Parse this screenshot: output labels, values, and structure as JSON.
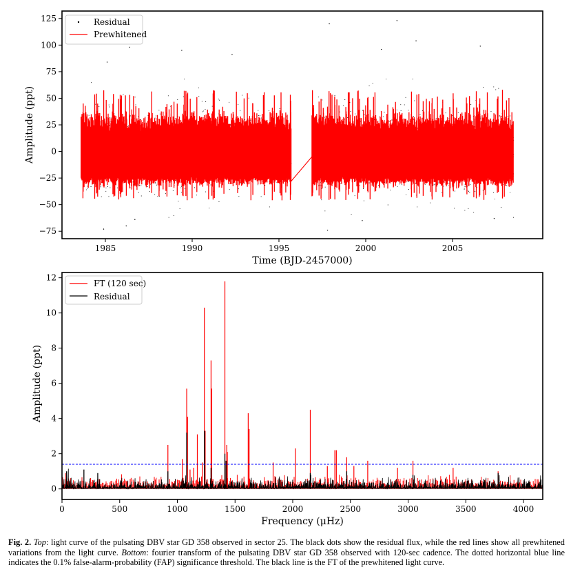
{
  "chart_data": [
    {
      "type": "scatter",
      "xlabel": "Time (BJD-2457000)",
      "ylabel": "Amplitude (ppt)",
      "xlim": [
        1982.5,
        2010.2
      ],
      "ylim": [
        -82,
        132
      ],
      "xticks": [
        1985,
        1990,
        1995,
        2000,
        2005
      ],
      "yticks": [
        -75,
        -50,
        -25,
        0,
        25,
        50,
        75,
        100,
        125
      ],
      "legend_position": "top-left",
      "grid": false,
      "segments": [
        [
          1983.6,
          1995.7
        ],
        [
          1996.9,
          2008.5
        ]
      ],
      "series": [
        {
          "name": "Residual",
          "style": "dots",
          "color": "#000000",
          "typical_range": [
            -45,
            45
          ],
          "outliers": [
            {
              "x": 1984.9,
              "y": -73
            },
            {
              "x": 1986.2,
              "y": -70
            },
            {
              "x": 1986.7,
              "y": -64
            },
            {
              "x": 1985.1,
              "y": 84
            },
            {
              "x": 1989.4,
              "y": 95
            },
            {
              "x": 1986.4,
              "y": 98
            },
            {
              "x": 1992.3,
              "y": 91
            },
            {
              "x": 1997.9,
              "y": 120
            },
            {
              "x": 1997.8,
              "y": -74
            },
            {
              "x": 2001.8,
              "y": 123
            },
            {
              "x": 2002.9,
              "y": 104
            },
            {
              "x": 2006.6,
              "y": 99
            },
            {
              "x": 2000.9,
              "y": 96
            },
            {
              "x": 1999.8,
              "y": -65
            },
            {
              "x": 2007.4,
              "y": -63
            }
          ]
        },
        {
          "name": "Prewhitened",
          "style": "line",
          "color": "#ff0000",
          "typical_range": [
            -30,
            35
          ],
          "gap_connector": [
            {
              "x": 1995.7,
              "y": -28
            },
            {
              "x": 1996.9,
              "y": -5
            }
          ]
        }
      ]
    },
    {
      "type": "line",
      "xlabel": "Frequency (μHz)",
      "ylabel": "Amplitude (ppt)",
      "xlim": [
        0,
        4167
      ],
      "ylim": [
        -0.6,
        12.3
      ],
      "xticks": [
        0,
        500,
        1000,
        1500,
        2000,
        2500,
        3000,
        3500,
        4000
      ],
      "yticks": [
        0,
        2,
        4,
        6,
        8,
        10,
        12
      ],
      "legend_position": "top-left",
      "grid": false,
      "fap_threshold": 1.4,
      "threshold_color": "#0000ff",
      "series": [
        {
          "name": "FT (120 sec)",
          "color": "#ff0000",
          "peaks": [
            {
              "x": 918,
              "y": 2.5
            },
            {
              "x": 1043,
              "y": 1.7
            },
            {
              "x": 1081,
              "y": 5.7
            },
            {
              "x": 1088,
              "y": 4.1
            },
            {
              "x": 1110,
              "y": 1.1
            },
            {
              "x": 1142,
              "y": 1.2
            },
            {
              "x": 1173,
              "y": 3.1
            },
            {
              "x": 1217,
              "y": 1.5
            },
            {
              "x": 1234,
              "y": 10.3
            },
            {
              "x": 1241,
              "y": 3.3
            },
            {
              "x": 1292,
              "y": 7.3
            },
            {
              "x": 1298,
              "y": 5.7
            },
            {
              "x": 1412,
              "y": 11.8
            },
            {
              "x": 1428,
              "y": 2.5
            },
            {
              "x": 1433,
              "y": 2.1
            },
            {
              "x": 1614,
              "y": 4.3
            },
            {
              "x": 1622,
              "y": 3.4
            },
            {
              "x": 1830,
              "y": 1.5
            },
            {
              "x": 2022,
              "y": 2.3
            },
            {
              "x": 2152,
              "y": 4.5
            },
            {
              "x": 2300,
              "y": 1.3
            },
            {
              "x": 2365,
              "y": 2.2
            },
            {
              "x": 2378,
              "y": 2.2
            },
            {
              "x": 2468,
              "y": 1.8
            },
            {
              "x": 2530,
              "y": 1.3
            },
            {
              "x": 2650,
              "y": 1.6
            },
            {
              "x": 2908,
              "y": 1.2
            },
            {
              "x": 3042,
              "y": 1.6
            },
            {
              "x": 3390,
              "y": 1.2
            },
            {
              "x": 3780,
              "y": 1.0
            }
          ]
        },
        {
          "name": "Residual",
          "color": "#000000",
          "noise_level": 0.4,
          "peaks": [
            {
              "x": 40,
              "y": 1.0
            },
            {
              "x": 190,
              "y": 1.1
            },
            {
              "x": 310,
              "y": 0.9
            },
            {
              "x": 918,
              "y": 1.0
            },
            {
              "x": 1081,
              "y": 3.2
            },
            {
              "x": 1234,
              "y": 3.3
            },
            {
              "x": 1292,
              "y": 1.2
            },
            {
              "x": 1412,
              "y": 2.0
            },
            {
              "x": 1422,
              "y": 1.6
            },
            {
              "x": 2152,
              "y": 0.9
            },
            {
              "x": 2468,
              "y": 1.0
            },
            {
              "x": 3042,
              "y": 0.8
            },
            {
              "x": 3780,
              "y": 0.9
            }
          ]
        }
      ]
    }
  ],
  "caption": {
    "label": "Fig. 2.",
    "top_word": "Top",
    "part1": ": light curve of the pulsating DBV star GD 358 observed in sector 25. The black dots show the residual flux, while the red lines show all prewhitened variations from the light curve. ",
    "bottom_word": "Bottom",
    "part2": ": fourier transform of the pulsating DBV star GD 358 observed with 120-sec cadence. The dotted horizontal blue line indicates the 0.1% false-alarm-probability (FAP) significance threshold. The black line is the FT of the prewhitened light curve."
  }
}
